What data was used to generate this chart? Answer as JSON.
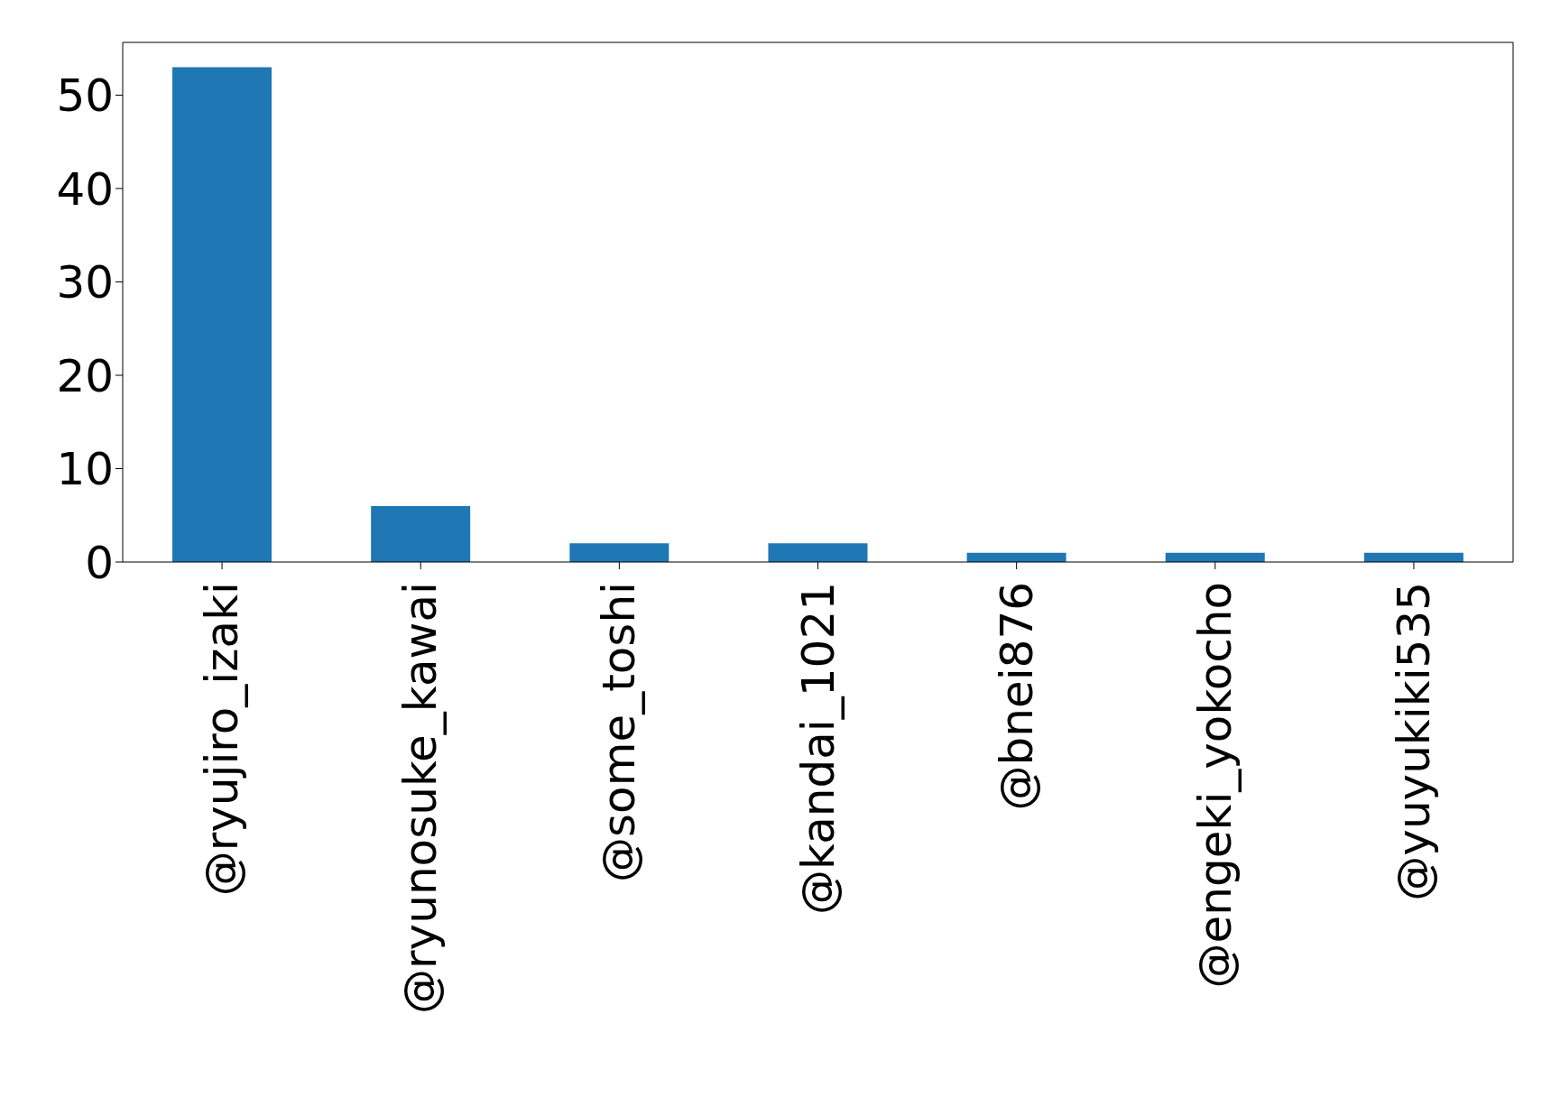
{
  "chart_data": {
    "type": "bar",
    "categories": [
      "@ryujiro_izaki",
      "@ryunosuke_kawai",
      "@some_toshi",
      "@kandai_1021",
      "@bnei876",
      "@engeki_yokocho",
      "@yuyukiki535"
    ],
    "values": [
      53,
      6,
      2,
      2,
      1,
      1,
      1
    ],
    "color": "#1f77b4",
    "ylim": [
      0,
      55.65
    ],
    "yticks": [
      0,
      10,
      20,
      30,
      40,
      50
    ]
  }
}
